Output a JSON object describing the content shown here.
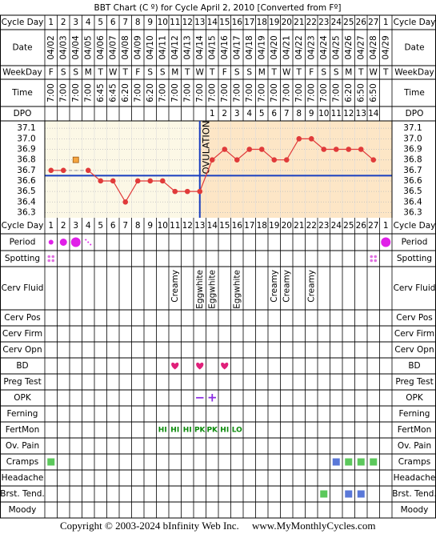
{
  "title": "BBT Chart (C º) for Cycle April 2, 2010  [Converted from Fº]",
  "row_labels": {
    "cycle_day": "Cycle Day",
    "date": "Date",
    "weekday": "WeekDay",
    "time": "Time",
    "dpo": "DPO"
  },
  "cycle_days": [
    1,
    2,
    3,
    4,
    5,
    6,
    7,
    8,
    9,
    10,
    11,
    12,
    13,
    14,
    15,
    16,
    17,
    18,
    19,
    20,
    21,
    22,
    23,
    24,
    25,
    26,
    27,
    1
  ],
  "dates": [
    "04/02",
    "04/03",
    "04/04",
    "04/05",
    "04/06",
    "04/07",
    "04/08",
    "04/09",
    "04/10",
    "04/11",
    "04/12",
    "04/13",
    "04/14",
    "04/15",
    "04/16",
    "04/17",
    "04/18",
    "04/19",
    "04/20",
    "04/21",
    "04/22",
    "04/23",
    "04/24",
    "04/25",
    "04/26",
    "04/27",
    "04/28",
    "04/29"
  ],
  "weekdays": [
    "F",
    "S",
    "S",
    "M",
    "T",
    "W",
    "T",
    "F",
    "S",
    "S",
    "M",
    "T",
    "W",
    "T",
    "F",
    "S",
    "S",
    "M",
    "T",
    "W",
    "T",
    "F",
    "S",
    "S",
    "M",
    "T",
    "W",
    "T"
  ],
  "times": [
    "7:00",
    "7:00",
    "7:00",
    "7:00",
    "6:45",
    "6:45",
    "6:20",
    "7:00",
    "6:20",
    "7:00",
    "7:00",
    "7:00",
    "7:00",
    "7:00",
    "7:00",
    "7:00",
    "7:00",
    "7:00",
    "7:00",
    "7:00",
    "7:00",
    "7:00",
    "7:00",
    "7:00",
    "6:20",
    "6:50",
    "6:50",
    null
  ],
  "dpo": [
    null,
    null,
    null,
    null,
    null,
    null,
    null,
    null,
    null,
    null,
    null,
    null,
    null,
    1,
    2,
    3,
    4,
    5,
    6,
    7,
    8,
    9,
    10,
    11,
    12,
    13,
    14,
    null
  ],
  "chart": {
    "ylim": [
      36.25,
      37.17
    ],
    "yticks": [
      37.1,
      {
        "value": 37.0,
        "label": "37.0"
      },
      36.9,
      36.8,
      36.7,
      36.6,
      36.5,
      36.4,
      36.3
    ],
    "temps": [
      36.7,
      36.7,
      null,
      36.7,
      36.6,
      36.6,
      36.4,
      36.6,
      36.6,
      36.6,
      36.5,
      36.5,
      36.5,
      36.8,
      36.9,
      36.8,
      36.9,
      36.9,
      36.8,
      36.8,
      37.0,
      37.0,
      36.9,
      36.9,
      36.9,
      36.9,
      36.8,
      null
    ],
    "discarded": [
      null,
      null,
      36.8,
      null,
      null,
      null,
      null,
      null,
      null,
      null,
      null,
      null,
      null,
      null,
      null,
      null,
      null,
      null,
      null,
      null,
      null,
      null,
      null,
      null,
      null,
      null,
      null,
      null
    ],
    "coverline": 36.65,
    "ovulation_day": 12,
    "ovulation_label": "OVULATION",
    "color": "#e03a3a"
  },
  "tracking": [
    {
      "label": "Period",
      "flow": [
        1,
        2,
        3,
        null,
        null,
        null,
        null,
        null,
        null,
        null,
        null,
        null,
        null,
        null,
        null,
        null,
        null,
        null,
        null,
        null,
        null,
        null,
        null,
        null,
        null,
        null,
        null,
        3
      ],
      "spot": [
        null,
        null,
        null,
        true,
        null,
        null,
        null,
        null,
        null,
        null,
        null,
        null,
        null,
        null,
        null,
        null,
        null,
        null,
        null,
        null,
        null,
        null,
        null,
        null,
        null,
        null,
        null,
        null
      ]
    },
    {
      "label": "Spotting",
      "dots": [
        true,
        null,
        null,
        null,
        null,
        null,
        null,
        null,
        null,
        null,
        null,
        null,
        null,
        null,
        null,
        null,
        null,
        null,
        null,
        null,
        null,
        null,
        null,
        null,
        null,
        null,
        true,
        null
      ]
    },
    {
      "label": "Cerv Fluid",
      "text": [
        null,
        null,
        null,
        null,
        null,
        null,
        null,
        null,
        null,
        null,
        "Creamy",
        null,
        "Eggwhite",
        "Eggwhite",
        null,
        "Eggwhite",
        null,
        null,
        "Creamy",
        "Creamy",
        null,
        "Creamy",
        null,
        null,
        null,
        null,
        null,
        null
      ]
    },
    {
      "label": "Cerv Pos"
    },
    {
      "label": "Cerv Firm"
    },
    {
      "label": "Cerv Opn"
    },
    {
      "label": "BD",
      "hearts": [
        null,
        null,
        null,
        null,
        null,
        null,
        null,
        null,
        null,
        null,
        true,
        null,
        true,
        null,
        true,
        null,
        null,
        null,
        null,
        null,
        null,
        null,
        null,
        null,
        null,
        null,
        null,
        null
      ]
    },
    {
      "label": "Preg Test"
    },
    {
      "label": "OPK",
      "symbols": [
        null,
        null,
        null,
        null,
        null,
        null,
        null,
        null,
        null,
        null,
        null,
        null,
        "−",
        "+",
        null,
        null,
        null,
        null,
        null,
        null,
        null,
        null,
        null,
        null,
        null,
        null,
        null,
        null
      ]
    },
    {
      "label": "Ferning"
    },
    {
      "label": "FertMon",
      "codes": [
        null,
        null,
        null,
        null,
        null,
        null,
        null,
        null,
        null,
        "HI",
        "HI",
        "HI",
        "PK",
        "PK",
        "HI",
        "LO",
        null,
        null,
        null,
        null,
        null,
        null,
        null,
        null,
        null,
        null,
        null,
        null
      ]
    },
    {
      "label": "Ov. Pain"
    },
    {
      "label": "Cramps",
      "squares": [
        "#5cc85c",
        null,
        null,
        null,
        null,
        null,
        null,
        null,
        null,
        null,
        null,
        null,
        null,
        null,
        null,
        null,
        null,
        null,
        null,
        null,
        null,
        null,
        null,
        "#5a78d8",
        "#5cc85c",
        "#5cc85c",
        "#5cc85c",
        null
      ]
    },
    {
      "label": "Headache"
    },
    {
      "label": "Brst. Tend.",
      "squares": [
        null,
        null,
        null,
        null,
        null,
        null,
        null,
        null,
        null,
        null,
        null,
        null,
        null,
        null,
        null,
        null,
        null,
        null,
        null,
        null,
        null,
        null,
        "#5cc85c",
        null,
        "#5a78d8",
        "#5a78d8",
        null,
        null
      ]
    },
    {
      "label": "Moody"
    }
  ],
  "footer": {
    "copyright": "Copyright © 2003-2024 bInfinity Web Inc.",
    "site": "www.MyMonthlyCycles.com"
  }
}
